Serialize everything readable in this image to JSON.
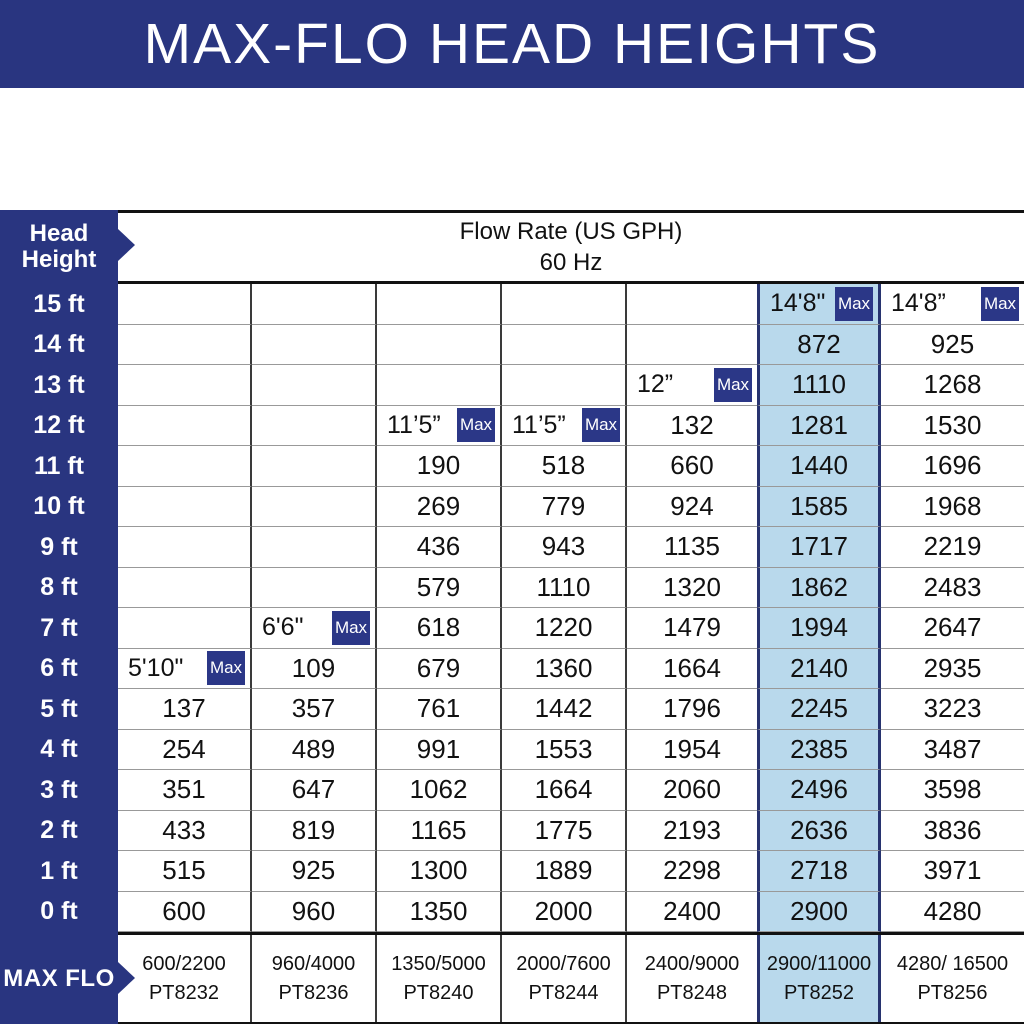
{
  "title": "MAX-FLO HEAD HEIGHTS",
  "colors": {
    "navy": "#293580",
    "badge_navy": "#2b3787",
    "highlight_blue": "#b9d9ec",
    "grid_dark": "#3a3a3a",
    "grid_light": "#999999",
    "text": "#111111"
  },
  "table": {
    "corner_line1": "Head",
    "corner_line2": "Height",
    "header_line1": "Flow Rate (US GPH)",
    "header_line2": "60 Hz",
    "max_flo_label": "MAX FLO",
    "max_badge_label": "Max",
    "row_labels": [
      "15 ft",
      "14 ft",
      "13 ft",
      "12 ft",
      "11 ft",
      "10 ft",
      "9 ft",
      "8 ft",
      "7 ft",
      "6 ft",
      "5 ft",
      "4 ft",
      "3 ft",
      "2 ft",
      "1 ft",
      "0 ft"
    ],
    "columns": [
      {
        "max_flo": "600/2200",
        "model": "PT8232",
        "highlight": false,
        "cells": [
          "",
          "",
          "",
          "",
          "",
          "",
          "",
          "",
          "",
          {
            "text": "5'10\"",
            "max": true
          },
          "137",
          "254",
          "351",
          "433",
          "515",
          "600"
        ]
      },
      {
        "max_flo": "960/4000",
        "model": "PT8236",
        "highlight": false,
        "cells": [
          "",
          "",
          "",
          "",
          "",
          "",
          "",
          "",
          {
            "text": "6'6\"",
            "max": true
          },
          "109",
          "357",
          "489",
          "647",
          "819",
          "925",
          "960"
        ]
      },
      {
        "max_flo": "1350/5000",
        "model": "PT8240",
        "highlight": false,
        "cells": [
          "",
          "",
          "",
          {
            "text": "11’5”",
            "max": true
          },
          "190",
          "269",
          "436",
          "579",
          "618",
          "679",
          "761",
          "991",
          "1062",
          "1165",
          "1300",
          "1350"
        ]
      },
      {
        "max_flo": "2000/7600",
        "model": "PT8244",
        "highlight": false,
        "cells": [
          "",
          "",
          "",
          {
            "text": "11’5”",
            "max": true
          },
          "518",
          "779",
          "943",
          "1110",
          "1220",
          "1360",
          "1442",
          "1553",
          "1664",
          "1775",
          "1889",
          "2000"
        ]
      },
      {
        "max_flo": "2400/9000",
        "model": "PT8248",
        "highlight": false,
        "cells": [
          "",
          "",
          {
            "text": "12”",
            "max": true
          },
          "132",
          "660",
          "924",
          "1135",
          "1320",
          "1479",
          "1664",
          "1796",
          "1954",
          "2060",
          "2193",
          "2298",
          "2400"
        ]
      },
      {
        "max_flo": "2900/11000",
        "model": "PT8252",
        "highlight": true,
        "cells": [
          {
            "text": "14'8\"",
            "max": true
          },
          "872",
          "1110",
          "1281",
          "1440",
          "1585",
          "1717",
          "1862",
          "1994",
          "2140",
          "2245",
          "2385",
          "2496",
          "2636",
          "2718",
          "2900"
        ]
      },
      {
        "max_flo": "4280/ 16500",
        "model": "PT8256",
        "highlight": false,
        "cells": [
          {
            "text": "14'8”",
            "max": true
          },
          "925",
          "1268",
          "1530",
          "1696",
          "1968",
          "2219",
          "2483",
          "2647",
          "2935",
          "3223",
          "3487",
          "3598",
          "3836",
          "3971",
          "4280"
        ]
      }
    ]
  },
  "chart_data": {
    "type": "table",
    "title": "MAX-FLO HEAD HEIGHTS",
    "column_header": "Flow Rate (US GPH) 60 Hz",
    "row_header": "Head Height",
    "head_heights_ft": [
      15,
      14,
      13,
      12,
      11,
      10,
      9,
      8,
      7,
      6,
      5,
      4,
      3,
      2,
      1,
      0
    ],
    "highlighted_model": "PT8252",
    "series": [
      {
        "model": "PT8232",
        "max_flo": "600/2200",
        "max_head": "5'10\"",
        "flow_by_head_ft": {
          "5": 137,
          "4": 254,
          "3": 351,
          "2": 433,
          "1": 515,
          "0": 600
        }
      },
      {
        "model": "PT8236",
        "max_flo": "960/4000",
        "max_head": "6'6\"",
        "flow_by_head_ft": {
          "6": 109,
          "5": 357,
          "4": 489,
          "3": 647,
          "2": 819,
          "1": 925,
          "0": 960
        }
      },
      {
        "model": "PT8240",
        "max_flo": "1350/5000",
        "max_head": "11'5\"",
        "flow_by_head_ft": {
          "11": 190,
          "10": 269,
          "9": 436,
          "8": 579,
          "7": 618,
          "6": 679,
          "5": 761,
          "4": 991,
          "3": 1062,
          "2": 1165,
          "1": 1300,
          "0": 1350
        }
      },
      {
        "model": "PT8244",
        "max_flo": "2000/7600",
        "max_head": "11'5\"",
        "flow_by_head_ft": {
          "11": 518,
          "10": 779,
          "9": 943,
          "8": 1110,
          "7": 1220,
          "6": 1360,
          "5": 1442,
          "4": 1553,
          "3": 1664,
          "2": 1775,
          "1": 1889,
          "0": 2000
        }
      },
      {
        "model": "PT8248",
        "max_flo": "2400/9000",
        "max_head": "12\"",
        "flow_by_head_ft": {
          "12": 132,
          "11": 660,
          "10": 924,
          "9": 1135,
          "8": 1320,
          "7": 1479,
          "6": 1664,
          "5": 1796,
          "4": 1954,
          "3": 2060,
          "2": 2193,
          "1": 2298,
          "0": 2400
        }
      },
      {
        "model": "PT8252",
        "max_flo": "2900/11000",
        "max_head": "14'8\"",
        "flow_by_head_ft": {
          "14": 872,
          "13": 1110,
          "12": 1281,
          "11": 1440,
          "10": 1585,
          "9": 1717,
          "8": 1862,
          "7": 1994,
          "6": 2140,
          "5": 2245,
          "4": 2385,
          "3": 2496,
          "2": 2636,
          "1": 2718,
          "0": 2900
        }
      },
      {
        "model": "PT8256",
        "max_flo": "4280/ 16500",
        "max_head": "14'8\"",
        "flow_by_head_ft": {
          "14": 925,
          "13": 1268,
          "12": 1530,
          "11": 1696,
          "10": 1968,
          "9": 2219,
          "8": 2483,
          "7": 2647,
          "6": 2935,
          "5": 3223,
          "4": 3487,
          "3": 3598,
          "2": 3836,
          "1": 3971,
          "0": 4280
        }
      }
    ]
  }
}
